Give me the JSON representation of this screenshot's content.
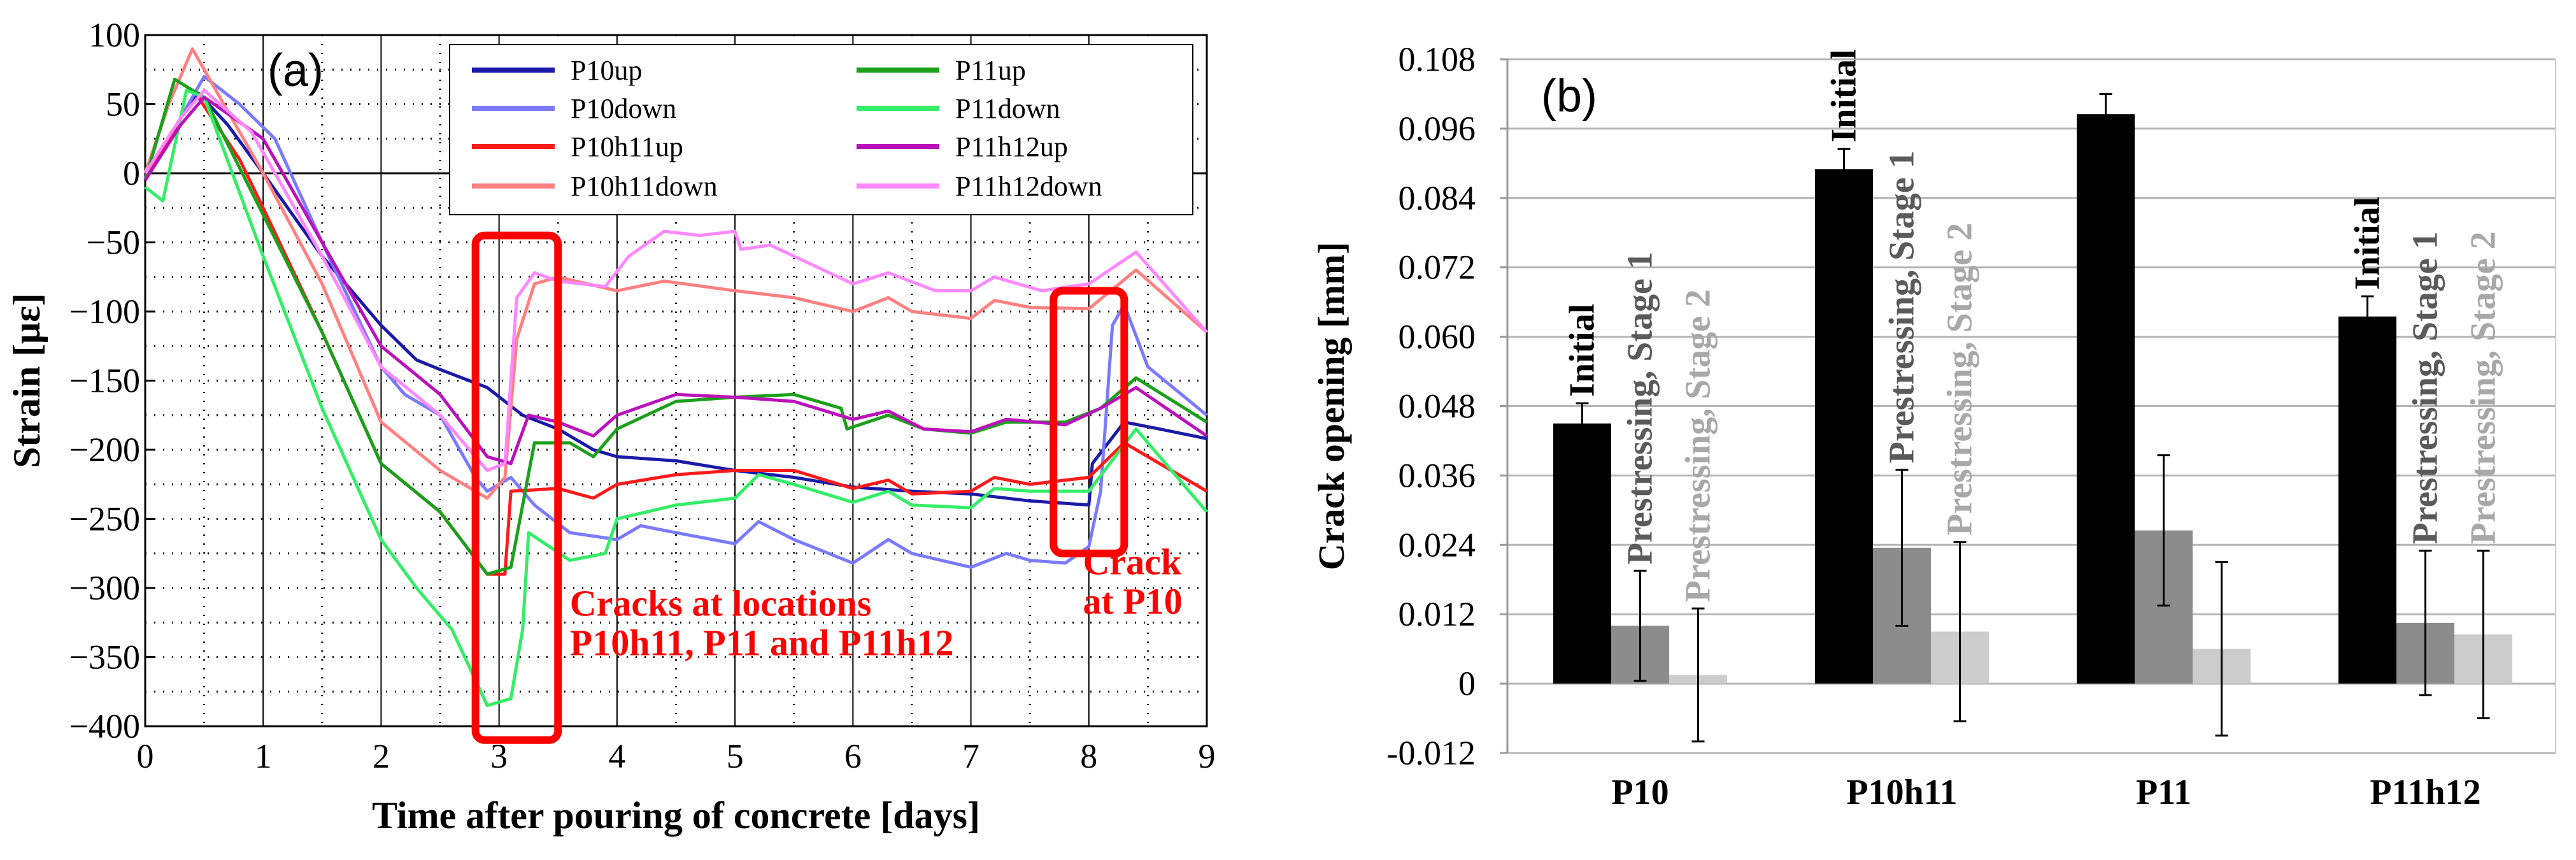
{
  "chart_data": [
    {
      "type": "line",
      "panel_label": "(a)",
      "xlabel": "Time after pouring of concrete [days]",
      "ylabel": "Strain [με]",
      "xlim": [
        0,
        9
      ],
      "ylim": [
        -400,
        100
      ],
      "xticks": [
        "0",
        "1",
        "2",
        "3",
        "4",
        "5",
        "6",
        "7",
        "8",
        "9"
      ],
      "yticks": [
        "100",
        "50",
        "0",
        "−50",
        "−100",
        "−150",
        "−200",
        "−250",
        "−300",
        "−350",
        "−400"
      ],
      "grid": true,
      "legend_position": "top-right",
      "series": [
        {
          "name": "P10up",
          "color": "#1a1aa8",
          "points": [
            [
              0,
              -5
            ],
            [
              0.3,
              40
            ],
            [
              0.45,
              58
            ],
            [
              0.7,
              35
            ],
            [
              1,
              0
            ],
            [
              1.5,
              -60
            ],
            [
              2,
              -110
            ],
            [
              2.3,
              -135
            ],
            [
              2.5,
              -142
            ],
            [
              2.9,
              -155
            ],
            [
              3.2,
              -175
            ],
            [
              3.5,
              -185
            ],
            [
              3.8,
              -200
            ],
            [
              4,
              -205
            ],
            [
              4.5,
              -208
            ],
            [
              5,
              -215
            ],
            [
              5.5,
              -220
            ],
            [
              6,
              -227
            ],
            [
              6.5,
              -230
            ],
            [
              7,
              -232
            ],
            [
              7.5,
              -237
            ],
            [
              8,
              -240
            ],
            [
              8.03,
              -210
            ],
            [
              8.3,
              -180
            ],
            [
              8.6,
              -185
            ],
            [
              9,
              -192
            ]
          ]
        },
        {
          "name": "P10down",
          "color": "#7a7aff",
          "points": [
            [
              0,
              -5
            ],
            [
              0.3,
              40
            ],
            [
              0.5,
              70
            ],
            [
              0.8,
              50
            ],
            [
              1.1,
              25
            ],
            [
              1.5,
              -50
            ],
            [
              2,
              -140
            ],
            [
              2.2,
              -160
            ],
            [
              2.5,
              -175
            ],
            [
              2.8,
              -220
            ],
            [
              2.9,
              -230
            ],
            [
              3.1,
              -220
            ],
            [
              3.3,
              -240
            ],
            [
              3.6,
              -260
            ],
            [
              4,
              -265
            ],
            [
              4.2,
              -255
            ],
            [
              4.5,
              -260
            ],
            [
              5,
              -268
            ],
            [
              5.2,
              -252
            ],
            [
              5.5,
              -265
            ],
            [
              6,
              -282
            ],
            [
              6.3,
              -265
            ],
            [
              6.5,
              -275
            ],
            [
              7,
              -285
            ],
            [
              7.3,
              -275
            ],
            [
              7.5,
              -280
            ],
            [
              7.8,
              -282
            ],
            [
              8,
              -270
            ],
            [
              8.1,
              -230
            ],
            [
              8.2,
              -110
            ],
            [
              8.3,
              -95
            ],
            [
              8.5,
              -140
            ],
            [
              9,
              -175
            ]
          ]
        },
        {
          "name": "P10h11up",
          "color": "#ff1a1a",
          "points": [
            [
              0,
              -5
            ],
            [
              0.3,
              40
            ],
            [
              0.45,
              55
            ],
            [
              0.8,
              10
            ],
            [
              1,
              -25
            ],
            [
              1.5,
              -115
            ],
            [
              2,
              -210
            ],
            [
              2.5,
              -245
            ],
            [
              2.9,
              -290
            ],
            [
              3.05,
              -290
            ],
            [
              3.1,
              -230
            ],
            [
              3.5,
              -228
            ],
            [
              3.8,
              -235
            ],
            [
              4,
              -225
            ],
            [
              4.5,
              -218
            ],
            [
              5,
              -215
            ],
            [
              5.5,
              -215
            ],
            [
              6,
              -228
            ],
            [
              6.3,
              -222
            ],
            [
              6.5,
              -232
            ],
            [
              7,
              -230
            ],
            [
              7.2,
              -220
            ],
            [
              7.5,
              -225
            ],
            [
              8,
              -220
            ],
            [
              8.3,
              -195
            ],
            [
              8.6,
              -210
            ],
            [
              9,
              -230
            ]
          ]
        },
        {
          "name": "P10h11down",
          "color": "#ff8080",
          "points": [
            [
              0,
              0
            ],
            [
              0.2,
              50
            ],
            [
              0.4,
              90
            ],
            [
              0.6,
              60
            ],
            [
              1,
              0
            ],
            [
              1.5,
              -80
            ],
            [
              2,
              -180
            ],
            [
              2.5,
              -215
            ],
            [
              2.9,
              -235
            ],
            [
              3.05,
              -220
            ],
            [
              3.15,
              -120
            ],
            [
              3.3,
              -80
            ],
            [
              3.5,
              -75
            ],
            [
              4,
              -85
            ],
            [
              4.4,
              -78
            ],
            [
              5,
              -85
            ],
            [
              5.5,
              -90
            ],
            [
              6,
              -100
            ],
            [
              6.3,
              -90
            ],
            [
              6.5,
              -100
            ],
            [
              7,
              -105
            ],
            [
              7.2,
              -92
            ],
            [
              7.5,
              -97
            ],
            [
              8,
              -98
            ],
            [
              8.4,
              -70
            ],
            [
              9,
              -115
            ]
          ]
        },
        {
          "name": "P11up",
          "color": "#1aa01a",
          "points": [
            [
              0,
              -5
            ],
            [
              0.25,
              68
            ],
            [
              0.4,
              60
            ],
            [
              0.5,
              55
            ],
            [
              1,
              -30
            ],
            [
              1.5,
              -115
            ],
            [
              2,
              -210
            ],
            [
              2.5,
              -245
            ],
            [
              2.9,
              -290
            ],
            [
              3.1,
              -285
            ],
            [
              3.2,
              -240
            ],
            [
              3.3,
              -195
            ],
            [
              3.6,
              -195
            ],
            [
              3.8,
              -205
            ],
            [
              4,
              -185
            ],
            [
              4.5,
              -165
            ],
            [
              5,
              -162
            ],
            [
              5.5,
              -160
            ],
            [
              5.9,
              -170
            ],
            [
              5.95,
              -185
            ],
            [
              6.3,
              -175
            ],
            [
              6.6,
              -185
            ],
            [
              7,
              -188
            ],
            [
              7.3,
              -180
            ],
            [
              7.8,
              -180
            ],
            [
              8.1,
              -170
            ],
            [
              8.4,
              -148
            ],
            [
              9,
              -180
            ]
          ]
        },
        {
          "name": "P11down",
          "color": "#33ee66",
          "points": [
            [
              0,
              -10
            ],
            [
              0.15,
              -20
            ],
            [
              0.35,
              60
            ],
            [
              0.5,
              55
            ],
            [
              1,
              -60
            ],
            [
              1.5,
              -170
            ],
            [
              2,
              -265
            ],
            [
              2.3,
              -300
            ],
            [
              2.6,
              -330
            ],
            [
              2.9,
              -385
            ],
            [
              3.1,
              -380
            ],
            [
              3.2,
              -330
            ],
            [
              3.25,
              -260
            ],
            [
              3.6,
              -280
            ],
            [
              3.9,
              -275
            ],
            [
              4,
              -250
            ],
            [
              4.5,
              -240
            ],
            [
              5,
              -235
            ],
            [
              5.2,
              -218
            ],
            [
              5.5,
              -225
            ],
            [
              6,
              -238
            ],
            [
              6.3,
              -230
            ],
            [
              6.5,
              -240
            ],
            [
              7,
              -242
            ],
            [
              7.2,
              -228
            ],
            [
              7.5,
              -230
            ],
            [
              8,
              -230
            ],
            [
              8.4,
              -185
            ],
            [
              9,
              -245
            ]
          ]
        },
        {
          "name": "P11h12up",
          "color": "#bb11bb",
          "points": [
            [
              0,
              -5
            ],
            [
              0.3,
              35
            ],
            [
              0.5,
              55
            ],
            [
              1,
              25
            ],
            [
              1.5,
              -50
            ],
            [
              2,
              -125
            ],
            [
              2.5,
              -160
            ],
            [
              2.9,
              -205
            ],
            [
              3.1,
              -210
            ],
            [
              3.25,
              -175
            ],
            [
              3.5,
              -180
            ],
            [
              3.8,
              -190
            ],
            [
              4,
              -175
            ],
            [
              4.5,
              -160
            ],
            [
              5,
              -162
            ],
            [
              5.5,
              -165
            ],
            [
              6,
              -178
            ],
            [
              6.3,
              -172
            ],
            [
              6.6,
              -185
            ],
            [
              7,
              -187
            ],
            [
              7.3,
              -178
            ],
            [
              7.8,
              -182
            ],
            [
              8.1,
              -170
            ],
            [
              8.4,
              -155
            ],
            [
              9,
              -190
            ]
          ]
        },
        {
          "name": "P11h12down",
          "color": "#ff88ff",
          "points": [
            [
              0,
              0
            ],
            [
              0.3,
              40
            ],
            [
              0.5,
              60
            ],
            [
              0.9,
              30
            ],
            [
              1.5,
              -60
            ],
            [
              2,
              -140
            ],
            [
              2.5,
              -175
            ],
            [
              2.9,
              -215
            ],
            [
              3.05,
              -210
            ],
            [
              3.15,
              -90
            ],
            [
              3.3,
              -72
            ],
            [
              3.5,
              -78
            ],
            [
              3.9,
              -82
            ],
            [
              4.1,
              -60
            ],
            [
              4.4,
              -42
            ],
            [
              4.7,
              -45
            ],
            [
              5,
              -42
            ],
            [
              5.05,
              -55
            ],
            [
              5.3,
              -52
            ],
            [
              5.7,
              -68
            ],
            [
              6,
              -80
            ],
            [
              6.3,
              -72
            ],
            [
              6.7,
              -85
            ],
            [
              7,
              -85
            ],
            [
              7.2,
              -75
            ],
            [
              7.6,
              -85
            ],
            [
              8,
              -80
            ],
            [
              8.4,
              -57
            ],
            [
              9,
              -115
            ]
          ]
        }
      ],
      "annotations": [
        {
          "lines": [
            "Cracks at locations",
            "P10h11, P11 and P11h12"
          ],
          "color": "#ff0000",
          "box_x": [
            2.8,
            3.5
          ],
          "box_y": [
            -45,
            -410
          ],
          "text_at": [
            3.6,
            -320
          ]
        },
        {
          "lines": [
            "Crack",
            "at P10"
          ],
          "color": "#ff0000",
          "box_x": [
            7.7,
            8.3
          ],
          "box_y": [
            -85,
            -275
          ],
          "text_at": [
            7.95,
            -290
          ]
        }
      ]
    },
    {
      "type": "bar",
      "panel_label": "(b)",
      "ylabel": "Crack opening [mm]",
      "ylim": [
        -0.012,
        0.108
      ],
      "yticks": [
        "0.108",
        "0.096",
        "0.084",
        "0.072",
        "0.060",
        "0.048",
        "0.036",
        "0.024",
        "0.012",
        "0",
        "-0.012"
      ],
      "grid": true,
      "categories": [
        "P10",
        "P10h11",
        "P11",
        "P11h12"
      ],
      "series": [
        {
          "name": "Initial",
          "color": "#000000",
          "label_color": "#000000",
          "values": [
            0.045,
            0.089,
            0.0985,
            0.0635
          ],
          "errors": [
            0.0035,
            0.0035,
            0.0035,
            0.0035
          ],
          "show_label": [
            true,
            true,
            false,
            true
          ]
        },
        {
          "name": "Prestressing, Stage 1",
          "color": "#8c8c8c",
          "label_color": "#5a5a5a",
          "values": [
            0.01,
            0.0235,
            0.0265,
            0.0105
          ],
          "errors": [
            0.0095,
            0.0135,
            0.013,
            0.0125
          ],
          "show_label": [
            true,
            true,
            false,
            true
          ]
        },
        {
          "name": "Prestressing, Stage 2",
          "color": "#cccccc",
          "label_color": "#a8a8a8",
          "values": [
            0.0015,
            0.009,
            0.006,
            0.0085
          ],
          "errors": [
            0.0115,
            0.0155,
            0.015,
            0.0145
          ],
          "show_label": [
            true,
            true,
            false,
            true
          ]
        }
      ]
    }
  ]
}
